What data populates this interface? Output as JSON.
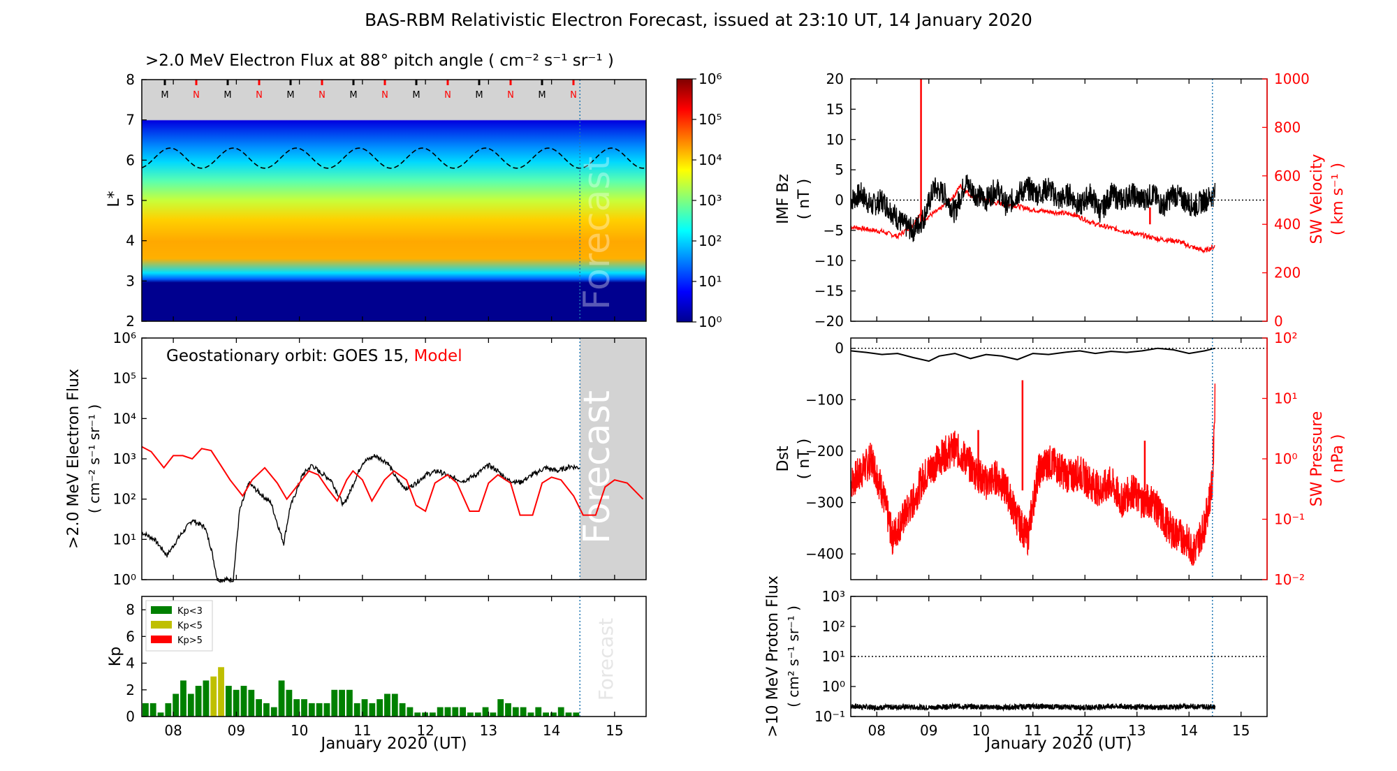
{
  "figure": {
    "title": "BAS-RBM Relativistic Electron Forecast, issued at 23:10 UT, 14 January 2020"
  },
  "colors": {
    "observed": "#000000",
    "model": "#ff0000",
    "forecast_shade": "#d3d3d3",
    "forecast_line": "#1f77b4",
    "kp_low": "#008000",
    "kp_mid": "#bfbf00",
    "kp_high": "#ff0000"
  },
  "chart_data": [
    {
      "id": "lstar_flux",
      "type": "heatmap",
      "title": ">2.0 MeV Electron Flux at 88° pitch angle ( cm⁻² s⁻¹ sr⁻¹ )",
      "ylabel": "L*",
      "xlim": [
        7.5,
        15.5
      ],
      "ylim": [
        2,
        8
      ],
      "yticks": [
        "2",
        "3",
        "4",
        "5",
        "6",
        "7",
        "8"
      ],
      "xticks": [
        "08",
        "09",
        "10",
        "11",
        "12",
        "13",
        "14",
        "15"
      ],
      "colorbar": {
        "scale": "log",
        "range": [
          1,
          1000000
        ],
        "ticks": [
          "10⁰",
          "10¹",
          "10²",
          "10³",
          "10⁴",
          "10⁵",
          "10⁶"
        ]
      },
      "markers": [
        "M",
        "N",
        "M",
        "N",
        "M",
        "N",
        "M",
        "N",
        "M",
        "N",
        "M",
        "N",
        "M",
        "N"
      ],
      "forecast_label": "Forecast",
      "geo_l_range": [
        5.8,
        6.3
      ]
    },
    {
      "id": "geo_flux",
      "type": "line",
      "ylabel": ">2.0 MeV Electron Flux",
      "ylabel2": "( cm⁻² s⁻¹ sr⁻¹ )",
      "legend_prefix": "Geostationary orbit:",
      "series": [
        {
          "name": "GOES 15",
          "x": [
            7.5,
            7.7,
            7.9,
            8.1,
            8.3,
            8.5,
            8.6,
            8.7,
            8.85,
            8.95,
            9.05,
            9.2,
            9.35,
            9.55,
            9.75,
            9.85,
            10.05,
            10.2,
            10.3,
            10.5,
            10.7,
            10.8,
            11.0,
            11.2,
            11.4,
            11.55,
            11.7,
            11.85,
            12.0,
            12.2,
            12.4,
            12.6,
            12.8,
            13.0,
            13.15,
            13.3,
            13.5,
            13.7,
            13.9,
            14.1,
            14.3,
            14.45
          ],
          "y": [
            15,
            10,
            4,
            12,
            30,
            20,
            6,
            1,
            1,
            1,
            50,
            250,
            150,
            80,
            8,
            60,
            400,
            700,
            500,
            300,
            70,
            150,
            800,
            1200,
            800,
            300,
            180,
            250,
            400,
            500,
            350,
            280,
            400,
            700,
            500,
            300,
            260,
            400,
            600,
            500,
            650,
            600
          ]
        },
        {
          "name": "Model",
          "x": [
            7.5,
            7.65,
            7.85,
            8.0,
            8.15,
            8.3,
            8.45,
            8.6,
            8.75,
            8.9,
            9.1,
            9.25,
            9.45,
            9.65,
            9.8,
            10.0,
            10.15,
            10.3,
            10.45,
            10.6,
            10.75,
            10.85,
            11.0,
            11.15,
            11.35,
            11.5,
            11.7,
            11.85,
            12.0,
            12.15,
            12.35,
            12.5,
            12.7,
            12.85,
            13.0,
            13.15,
            13.35,
            13.5,
            13.7,
            13.85,
            14.0,
            14.15,
            14.35,
            14.5,
            14.7,
            14.85,
            15.0,
            15.2,
            15.45
          ],
          "y": [
            2000,
            1500,
            600,
            1200,
            1200,
            1000,
            1800,
            1600,
            700,
            300,
            120,
            300,
            600,
            250,
            100,
            250,
            500,
            400,
            180,
            90,
            300,
            500,
            300,
            90,
            300,
            500,
            300,
            70,
            50,
            250,
            400,
            250,
            50,
            50,
            250,
            400,
            250,
            40,
            40,
            250,
            350,
            300,
            120,
            40,
            40,
            200,
            300,
            250,
            100
          ]
        }
      ],
      "ylim": [
        1,
        1000000
      ],
      "yscale": "log",
      "yticks": [
        "10⁰",
        "10¹",
        "10²",
        "10³",
        "10⁴",
        "10⁵",
        "10⁶"
      ],
      "forecast_label": "Forecast"
    },
    {
      "id": "kp",
      "type": "bar",
      "ylabel": "Kp",
      "xlabel": "January 2020 (UT)",
      "ylim": [
        0,
        9
      ],
      "yticks": [
        "0",
        "2",
        "4",
        "6",
        "8"
      ],
      "xticks": [
        "08",
        "09",
        "10",
        "11",
        "12",
        "13",
        "14",
        "15"
      ],
      "legend": [
        "Kp<3",
        "Kp<5",
        "Kp>5"
      ],
      "values": [
        1.0,
        1.0,
        0.3,
        1.0,
        1.7,
        2.7,
        1.7,
        2.3,
        2.7,
        3.0,
        3.7,
        2.3,
        2.0,
        2.3,
        2.0,
        1.3,
        1.0,
        0.7,
        2.7,
        2.0,
        1.3,
        1.3,
        1.0,
        1.0,
        1.0,
        2.0,
        2.0,
        2.0,
        1.0,
        1.3,
        1.0,
        1.3,
        1.7,
        1.7,
        1.0,
        0.7,
        0.3,
        0.3,
        0.3,
        0.7,
        0.7,
        0.7,
        0.7,
        0.3,
        0.3,
        0.7,
        0.3,
        1.3,
        1.0,
        0.7,
        0.7,
        0.3,
        0.7,
        0.3,
        0.3,
        0.7,
        0.3,
        0.3
      ],
      "forecast_label": "Forecast"
    },
    {
      "id": "imf_bz",
      "type": "line",
      "ylabel": "IMF Bz",
      "ylabel_unit": "( nT )",
      "ylabel_right": "SW Velocity",
      "ylabel_right_unit": "( km s⁻¹ )",
      "ylim": [
        -20,
        20
      ],
      "yticks": [
        "−20",
        "−15",
        "−10",
        "−5",
        "0",
        "5",
        "10",
        "15",
        "20"
      ],
      "ylim_right": [
        0,
        1000
      ],
      "yticks_right": [
        "0",
        "200",
        "400",
        "600",
        "800",
        "1000"
      ],
      "series": [
        {
          "name": "IMF Bz",
          "x": [
            7.5,
            7.7,
            7.9,
            8.1,
            8.3,
            8.5,
            8.7,
            8.9,
            9.1,
            9.3,
            9.5,
            9.7,
            9.9,
            10.1,
            10.3,
            10.5,
            10.7,
            10.9,
            11.1,
            11.3,
            11.5,
            11.7,
            11.9,
            12.1,
            12.3,
            12.5,
            12.7,
            12.9,
            13.1,
            13.3,
            13.5,
            13.7,
            13.9,
            14.1,
            14.3,
            14.5
          ],
          "y": [
            0,
            1,
            -1,
            0,
            -2,
            -4,
            -5,
            -3,
            2,
            1,
            -2,
            3,
            1,
            0,
            2,
            -1,
            1,
            2,
            1,
            2,
            0,
            1,
            -1,
            1,
            -2,
            1,
            0,
            1,
            0,
            1,
            -1,
            1,
            0,
            -1,
            0,
            1
          ]
        },
        {
          "name": "SW Velocity",
          "x": [
            7.5,
            7.8,
            8.1,
            8.4,
            8.7,
            8.85,
            8.9,
            9.2,
            9.5,
            9.6,
            9.8,
            10.2,
            10.6,
            11.0,
            11.4,
            11.8,
            12.2,
            12.6,
            13.0,
            13.4,
            13.8,
            14.0,
            14.3,
            14.5
          ],
          "y": [
            390,
            380,
            370,
            350,
            400,
            450,
            420,
            460,
            520,
            560,
            520,
            490,
            480,
            460,
            450,
            440,
            400,
            380,
            360,
            340,
            330,
            310,
            290,
            310
          ]
        }
      ],
      "spikes_right": [
        {
          "x": 8.85,
          "y": 1000
        },
        {
          "x": 13.25,
          "y": 470
        }
      ]
    },
    {
      "id": "dst",
      "type": "line",
      "ylabel": "Dst",
      "ylabel_unit": "( nT )",
      "ylabel_right": "SW Pressure",
      "ylabel_right_unit": "( nPa )",
      "ylim": [
        -450,
        20
      ],
      "yticks": [
        "0",
        "−100",
        "−200",
        "−300",
        "−400"
      ],
      "ylim_right": [
        0.01,
        100
      ],
      "yticks_right": [
        "10⁻²",
        "10⁻¹",
        "10⁰",
        "10¹",
        "10²"
      ],
      "series": [
        {
          "name": "Dst",
          "x": [
            7.5,
            7.8,
            8.1,
            8.4,
            8.7,
            9.0,
            9.2,
            9.5,
            9.8,
            10.1,
            10.4,
            10.7,
            11.0,
            11.3,
            11.6,
            11.9,
            12.2,
            12.5,
            12.8,
            13.1,
            13.4,
            13.7,
            14.0,
            14.3,
            14.5
          ],
          "y": [
            -5,
            -8,
            -12,
            -10,
            -18,
            -25,
            -15,
            -10,
            -20,
            -12,
            -15,
            -22,
            -10,
            -12,
            -8,
            -5,
            -10,
            -6,
            -8,
            -5,
            0,
            -3,
            -10,
            -5,
            0
          ]
        },
        {
          "name": "SW Pressure",
          "x": [
            7.5,
            7.7,
            7.9,
            8.1,
            8.3,
            8.5,
            8.7,
            8.9,
            9.1,
            9.3,
            9.5,
            9.7,
            9.9,
            10.1,
            10.3,
            10.5,
            10.7,
            10.9,
            11.1,
            11.3,
            11.5,
            11.7,
            11.9,
            12.1,
            12.3,
            12.5,
            12.7,
            12.9,
            13.1,
            13.3,
            13.5,
            13.7,
            13.9,
            14.1,
            14.3,
            14.45,
            14.5
          ],
          "y": [
            0.4,
            0.6,
            1.0,
            0.3,
            0.05,
            0.1,
            0.2,
            0.5,
            0.8,
            1.2,
            1.5,
            1.0,
            0.6,
            0.4,
            0.5,
            0.3,
            0.1,
            0.05,
            0.6,
            0.9,
            0.7,
            0.5,
            0.6,
            0.4,
            0.3,
            0.4,
            0.2,
            0.3,
            0.2,
            0.2,
            0.1,
            0.06,
            0.05,
            0.03,
            0.08,
            0.4,
            12
          ]
        }
      ],
      "spikes_right": [
        {
          "x": 10.8,
          "y": 20
        },
        {
          "x": 9.95,
          "y": 3
        },
        {
          "x": 13.15,
          "y": 2
        }
      ]
    },
    {
      "id": "proton_flux",
      "type": "line",
      "ylabel": ">10 MeV Proton Flux",
      "ylabel2": "( cm² s⁻¹ sr⁻¹ )",
      "xlabel": "January 2020 (UT)",
      "ylim": [
        0.1,
        1000
      ],
      "yscale": "log",
      "yticks": [
        "10⁻¹",
        "10⁰",
        "10¹",
        "10²",
        "10³"
      ],
      "xticks": [
        "08",
        "09",
        "10",
        "11",
        "12",
        "13",
        "14",
        "15"
      ],
      "threshold": 10,
      "series": [
        {
          "name": "Proton Flux",
          "x": [
            7.5,
            8.0,
            8.5,
            9.0,
            9.5,
            10.0,
            10.5,
            11.0,
            11.5,
            12.0,
            12.5,
            13.0,
            13.5,
            14.0,
            14.5
          ],
          "y": [
            0.22,
            0.2,
            0.21,
            0.2,
            0.22,
            0.21,
            0.2,
            0.22,
            0.21,
            0.2,
            0.22,
            0.21,
            0.2,
            0.22,
            0.21
          ]
        }
      ]
    }
  ]
}
